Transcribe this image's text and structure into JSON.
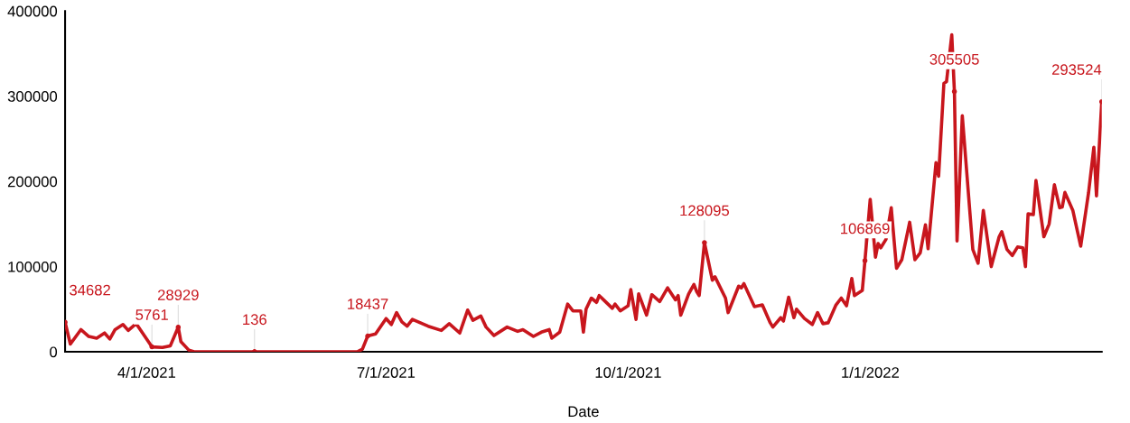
{
  "chart_data": {
    "type": "line",
    "xlabel": "Date",
    "xlim": [
      "2021-03-01",
      "2022-03-30"
    ],
    "xticks": [
      {
        "value": "2021-04-01",
        "label": "4/1/2021"
      },
      {
        "value": "2021-07-01",
        "label": "7/1/2021"
      },
      {
        "value": "2021-10-01",
        "label": "10/1/2021"
      },
      {
        "value": "2022-01-01",
        "label": "1/1/2022"
      }
    ],
    "ylim": [
      0,
      400000
    ],
    "yticks": [
      0,
      100000,
      200000,
      300000,
      400000
    ],
    "grid": false,
    "legend": false,
    "marker": "none",
    "line_style": "solid",
    "series": [
      {
        "color": "#c8161d",
        "x": [
          "2021-03-01",
          "2021-03-03",
          "2021-03-07",
          "2021-03-10",
          "2021-03-13",
          "2021-03-16",
          "2021-03-18",
          "2021-03-20",
          "2021-03-23",
          "2021-03-25",
          "2021-03-28",
          "2021-04-03",
          "2021-04-07",
          "2021-04-10",
          "2021-04-13",
          "2021-04-14",
          "2021-04-17",
          "2021-04-19",
          "2021-05-11",
          "2021-05-12",
          "2021-05-13",
          "2021-06-20",
          "2021-06-22",
          "2021-06-24",
          "2021-06-27",
          "2021-07-01",
          "2021-07-03",
          "2021-07-05",
          "2021-07-07",
          "2021-07-09",
          "2021-07-11",
          "2021-07-17",
          "2021-07-22",
          "2021-07-25",
          "2021-07-29",
          "2021-08-01",
          "2021-08-03",
          "2021-08-06",
          "2021-08-08",
          "2021-08-11",
          "2021-08-16",
          "2021-08-20",
          "2021-08-22",
          "2021-08-26",
          "2021-08-29",
          "2021-09-01",
          "2021-09-02",
          "2021-09-05",
          "2021-09-08",
          "2021-09-10",
          "2021-09-13",
          "2021-09-14",
          "2021-09-15",
          "2021-09-17",
          "2021-09-19",
          "2021-09-20",
          "2021-09-22",
          "2021-09-25",
          "2021-09-26",
          "2021-09-28",
          "2021-10-01",
          "2021-10-02",
          "2021-10-04",
          "2021-10-05",
          "2021-10-08",
          "2021-10-10",
          "2021-10-13",
          "2021-10-16",
          "2021-10-19",
          "2021-10-20",
          "2021-10-21",
          "2021-10-24",
          "2021-10-26",
          "2021-10-27",
          "2021-10-28",
          "2021-10-30",
          "2021-11-02",
          "2021-11-03",
          "2021-11-07",
          "2021-11-08",
          "2021-11-12",
          "2021-11-13",
          "2021-11-14",
          "2021-11-18",
          "2021-11-21",
          "2021-11-24",
          "2021-11-25",
          "2021-11-28",
          "2021-11-29",
          "2021-12-01",
          "2021-12-03",
          "2021-12-04",
          "2021-12-07",
          "2021-12-10",
          "2021-12-12",
          "2021-12-14",
          "2021-12-16",
          "2021-12-19",
          "2021-12-21",
          "2021-12-23",
          "2021-12-25",
          "2021-12-26",
          "2021-12-29",
          "2021-12-30",
          "2022-01-01",
          "2022-01-03",
          "2022-01-04",
          "2022-01-05",
          "2022-01-07",
          "2022-01-09",
          "2022-01-11",
          "2022-01-13",
          "2022-01-16",
          "2022-01-18",
          "2022-01-20",
          "2022-01-22",
          "2022-01-23",
          "2022-01-26",
          "2022-01-27",
          "2022-01-29",
          "2022-01-30",
          "2022-02-01",
          "2022-02-02",
          "2022-02-03",
          "2022-02-05",
          "2022-02-09",
          "2022-02-11",
          "2022-02-13",
          "2022-02-16",
          "2022-02-19",
          "2022-02-20",
          "2022-02-22",
          "2022-02-24",
          "2022-02-26",
          "2022-02-28",
          "2022-03-01",
          "2022-03-02",
          "2022-03-04",
          "2022-03-05",
          "2022-03-08",
          "2022-03-10",
          "2022-03-12",
          "2022-03-14",
          "2022-03-15",
          "2022-03-16",
          "2022-03-19",
          "2022-03-22",
          "2022-03-24",
          "2022-03-25",
          "2022-03-27",
          "2022-03-28",
          "2022-03-30"
        ],
        "values": [
          34682,
          9000,
          26000,
          18000,
          16000,
          22000,
          15000,
          26000,
          32000,
          25000,
          33000,
          5761,
          5000,
          7000,
          28929,
          12000,
          2000,
          0,
          0,
          136,
          0,
          0,
          3000,
          18437,
          21000,
          39000,
          32000,
          46000,
          35000,
          30000,
          38000,
          30000,
          25000,
          33000,
          22000,
          49000,
          37000,
          42000,
          29000,
          19000,
          29000,
          24000,
          26000,
          18000,
          23000,
          26000,
          16000,
          23000,
          56000,
          48000,
          48000,
          23000,
          50000,
          63000,
          58000,
          66000,
          60000,
          51000,
          56000,
          48000,
          54000,
          73000,
          38000,
          68000,
          43000,
          67000,
          59000,
          75000,
          61000,
          66000,
          43000,
          68000,
          79000,
          71000,
          66000,
          128095,
          84000,
          88000,
          63000,
          46000,
          77000,
          75000,
          80000,
          53000,
          55000,
          34000,
          29000,
          40000,
          36000,
          64000,
          40000,
          50000,
          39000,
          32000,
          46000,
          33000,
          34000,
          55000,
          63000,
          54000,
          86000,
          66000,
          72000,
          106869,
          179000,
          111000,
          127000,
          122000,
          132000,
          169000,
          98000,
          108000,
          152000,
          108000,
          116000,
          149000,
          121000,
          222000,
          206000,
          315000,
          317000,
          372000,
          305505,
          130000,
          277000,
          120000,
          104000,
          166000,
          100000,
          135000,
          141000,
          120000,
          113000,
          123000,
          122000,
          100000,
          162000,
          161000,
          201000,
          135000,
          150000,
          196000,
          169000,
          170000,
          187000,
          166000,
          124000,
          166000,
          187000,
          240000,
          183000,
          293524
        ],
        "value_labels": [
          "34682",
          null,
          null,
          null,
          null,
          null,
          null,
          null,
          null,
          null,
          null,
          "5761",
          null,
          null,
          "28929",
          null,
          null,
          null,
          null,
          "136",
          null,
          null,
          null,
          "18437",
          null,
          null,
          null,
          null,
          null,
          null,
          null,
          null,
          null,
          null,
          null,
          null,
          null,
          null,
          null,
          null,
          null,
          null,
          null,
          null,
          null,
          null,
          null,
          null,
          null,
          null,
          null,
          null,
          null,
          null,
          null,
          null,
          null,
          null,
          null,
          null,
          null,
          null,
          null,
          null,
          null,
          null,
          null,
          null,
          null,
          null,
          null,
          null,
          null,
          null,
          null,
          "128095",
          null,
          null,
          null,
          null,
          null,
          null,
          null,
          null,
          null,
          null,
          null,
          null,
          null,
          null,
          null,
          null,
          null,
          null,
          null,
          null,
          null,
          null,
          null,
          null,
          null,
          null,
          null,
          "106869",
          null,
          null,
          null,
          null,
          null,
          null,
          null,
          null,
          null,
          null,
          null,
          null,
          null,
          null,
          null,
          null,
          null,
          null,
          "305505",
          null,
          null,
          null,
          null,
          null,
          null,
          null,
          null,
          null,
          null,
          null,
          null,
          null,
          null,
          null,
          null,
          null,
          null,
          null,
          null,
          null,
          null,
          null,
          null,
          null,
          null,
          null,
          null,
          "293524"
        ]
      }
    ]
  }
}
